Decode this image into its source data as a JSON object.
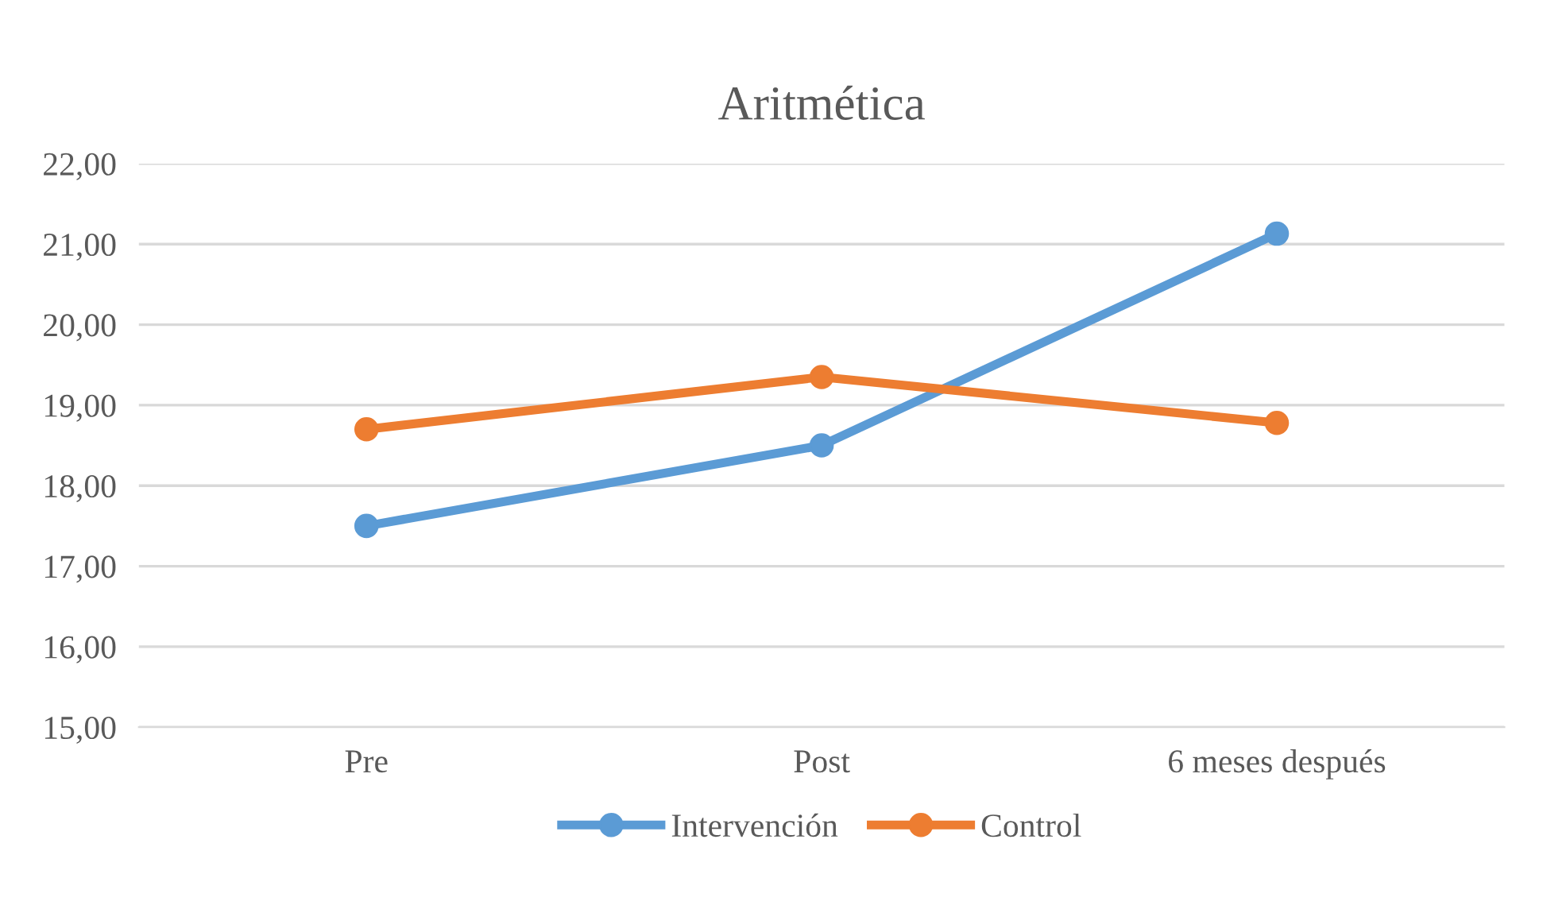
{
  "chart_data": {
    "type": "line",
    "title": "Aritmética",
    "categories": [
      "Pre",
      "Post",
      "6 meses después"
    ],
    "series": [
      {
        "name": "Intervención",
        "color": "#5b9bd5",
        "values": [
          17.5,
          18.5,
          21.13
        ]
      },
      {
        "name": "Control",
        "color": "#ed7d31",
        "values": [
          18.7,
          19.35,
          18.78
        ]
      }
    ],
    "ylim": [
      15,
      22
    ],
    "yticks": [
      {
        "value": 15,
        "label": "15,00"
      },
      {
        "value": 16,
        "label": "16,00"
      },
      {
        "value": 17,
        "label": "17,00"
      },
      {
        "value": 18,
        "label": "18,00"
      },
      {
        "value": 19,
        "label": "19,00"
      },
      {
        "value": 20,
        "label": "20,00"
      },
      {
        "value": 21,
        "label": "21,00"
      },
      {
        "value": 22,
        "label": "22,00"
      }
    ],
    "grid": "y",
    "legend": "bottom",
    "marker": "circle",
    "line_style": "solid"
  }
}
